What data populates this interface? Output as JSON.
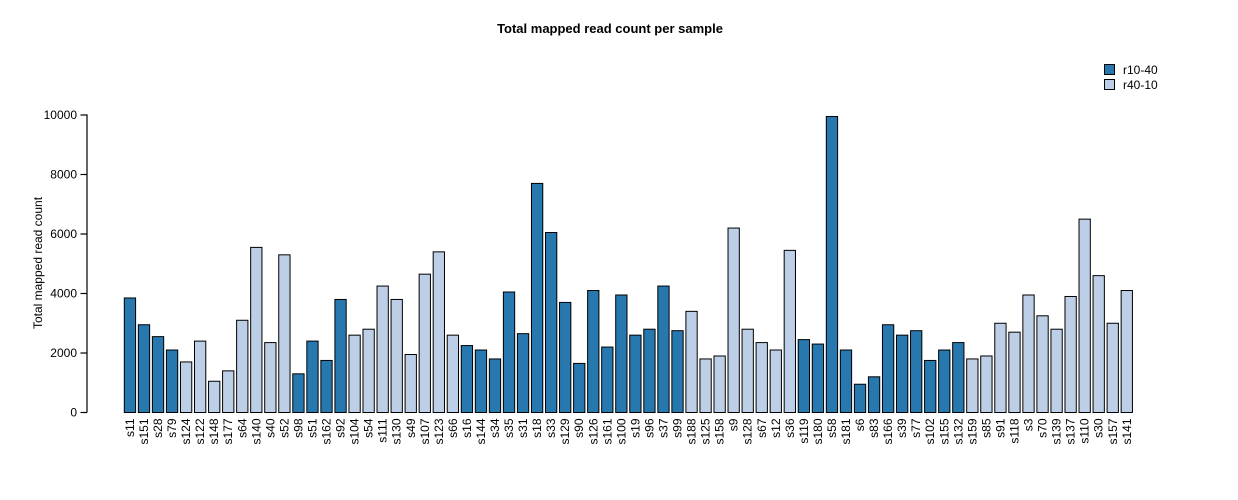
{
  "chart_data": {
    "type": "bar",
    "title": "Total mapped read count per sample",
    "ylabel": "Total mapped read count",
    "xlabel": "",
    "ylim": [
      0,
      10000
    ],
    "yticks": [
      0,
      2000,
      4000,
      6000,
      8000,
      10000
    ],
    "grid": false,
    "legend_position": "top-right",
    "series_colors": {
      "r10-40": "#2878B0",
      "r40-10": "#BDCFE7"
    },
    "legend": [
      {
        "label": "r10-40",
        "color": "#2878B0"
      },
      {
        "label": "r40-10",
        "color": "#BDCFE7"
      }
    ],
    "bars": [
      {
        "label": "s11",
        "value": 3850,
        "series": "r10-40"
      },
      {
        "label": "s151",
        "value": 2950,
        "series": "r10-40"
      },
      {
        "label": "s28",
        "value": 2550,
        "series": "r10-40"
      },
      {
        "label": "s79",
        "value": 2100,
        "series": "r10-40"
      },
      {
        "label": "s124",
        "value": 1700,
        "series": "r40-10"
      },
      {
        "label": "s122",
        "value": 2400,
        "series": "r40-10"
      },
      {
        "label": "s148",
        "value": 1050,
        "series": "r40-10"
      },
      {
        "label": "s177",
        "value": 1400,
        "series": "r40-10"
      },
      {
        "label": "s64",
        "value": 3100,
        "series": "r40-10"
      },
      {
        "label": "s140",
        "value": 5550,
        "series": "r40-10"
      },
      {
        "label": "s40",
        "value": 2350,
        "series": "r40-10"
      },
      {
        "label": "s52",
        "value": 5300,
        "series": "r40-10"
      },
      {
        "label": "s98",
        "value": 1300,
        "series": "r10-40"
      },
      {
        "label": "s51",
        "value": 2400,
        "series": "r10-40"
      },
      {
        "label": "s162",
        "value": 1750,
        "series": "r10-40"
      },
      {
        "label": "s92",
        "value": 3800,
        "series": "r10-40"
      },
      {
        "label": "s104",
        "value": 2600,
        "series": "r40-10"
      },
      {
        "label": "s54",
        "value": 2800,
        "series": "r40-10"
      },
      {
        "label": "s111",
        "value": 4250,
        "series": "r40-10"
      },
      {
        "label": "s130",
        "value": 3800,
        "series": "r40-10"
      },
      {
        "label": "s49",
        "value": 1950,
        "series": "r40-10"
      },
      {
        "label": "s107",
        "value": 4650,
        "series": "r40-10"
      },
      {
        "label": "s123",
        "value": 5400,
        "series": "r40-10"
      },
      {
        "label": "s66",
        "value": 2600,
        "series": "r40-10"
      },
      {
        "label": "s16",
        "value": 2250,
        "series": "r10-40"
      },
      {
        "label": "s144",
        "value": 2100,
        "series": "r10-40"
      },
      {
        "label": "s34",
        "value": 1800,
        "series": "r10-40"
      },
      {
        "label": "s35",
        "value": 4050,
        "series": "r10-40"
      },
      {
        "label": "s31",
        "value": 2650,
        "series": "r10-40"
      },
      {
        "label": "s18",
        "value": 7700,
        "series": "r10-40"
      },
      {
        "label": "s33",
        "value": 6050,
        "series": "r10-40"
      },
      {
        "label": "s129",
        "value": 3700,
        "series": "r10-40"
      },
      {
        "label": "s90",
        "value": 1650,
        "series": "r10-40"
      },
      {
        "label": "s126",
        "value": 4100,
        "series": "r10-40"
      },
      {
        "label": "s161",
        "value": 2200,
        "series": "r10-40"
      },
      {
        "label": "s100",
        "value": 3950,
        "series": "r10-40"
      },
      {
        "label": "s19",
        "value": 2600,
        "series": "r10-40"
      },
      {
        "label": "s96",
        "value": 2800,
        "series": "r10-40"
      },
      {
        "label": "s37",
        "value": 4250,
        "series": "r10-40"
      },
      {
        "label": "s99",
        "value": 2750,
        "series": "r10-40"
      },
      {
        "label": "s188",
        "value": 3400,
        "series": "r40-10"
      },
      {
        "label": "s125",
        "value": 1800,
        "series": "r40-10"
      },
      {
        "label": "s158",
        "value": 1900,
        "series": "r40-10"
      },
      {
        "label": "s9",
        "value": 6200,
        "series": "r40-10"
      },
      {
        "label": "s128",
        "value": 2800,
        "series": "r40-10"
      },
      {
        "label": "s67",
        "value": 2350,
        "series": "r40-10"
      },
      {
        "label": "s12",
        "value": 2100,
        "series": "r40-10"
      },
      {
        "label": "s36",
        "value": 5450,
        "series": "r40-10"
      },
      {
        "label": "s119",
        "value": 2450,
        "series": "r10-40"
      },
      {
        "label": "s180",
        "value": 2300,
        "series": "r10-40"
      },
      {
        "label": "s58",
        "value": 9950,
        "series": "r10-40"
      },
      {
        "label": "s181",
        "value": 2100,
        "series": "r10-40"
      },
      {
        "label": "s6",
        "value": 950,
        "series": "r10-40"
      },
      {
        "label": "s83",
        "value": 1200,
        "series": "r10-40"
      },
      {
        "label": "s166",
        "value": 2950,
        "series": "r10-40"
      },
      {
        "label": "s39",
        "value": 2600,
        "series": "r10-40"
      },
      {
        "label": "s77",
        "value": 2750,
        "series": "r10-40"
      },
      {
        "label": "s102",
        "value": 1750,
        "series": "r10-40"
      },
      {
        "label": "s155",
        "value": 2100,
        "series": "r10-40"
      },
      {
        "label": "s132",
        "value": 2350,
        "series": "r10-40"
      },
      {
        "label": "s159",
        "value": 1800,
        "series": "r40-10"
      },
      {
        "label": "s85",
        "value": 1900,
        "series": "r40-10"
      },
      {
        "label": "s91",
        "value": 3000,
        "series": "r40-10"
      },
      {
        "label": "s118",
        "value": 2700,
        "series": "r40-10"
      },
      {
        "label": "s3",
        "value": 3950,
        "series": "r40-10"
      },
      {
        "label": "s70",
        "value": 3250,
        "series": "r40-10"
      },
      {
        "label": "s139",
        "value": 2800,
        "series": "r40-10"
      },
      {
        "label": "s137",
        "value": 3900,
        "series": "r40-10"
      },
      {
        "label": "s110",
        "value": 6500,
        "series": "r40-10"
      },
      {
        "label": "s30",
        "value": 4600,
        "series": "r40-10"
      },
      {
        "label": "s157",
        "value": 3000,
        "series": "r40-10"
      },
      {
        "label": "s141",
        "value": 4100,
        "series": "r40-10"
      }
    ]
  }
}
